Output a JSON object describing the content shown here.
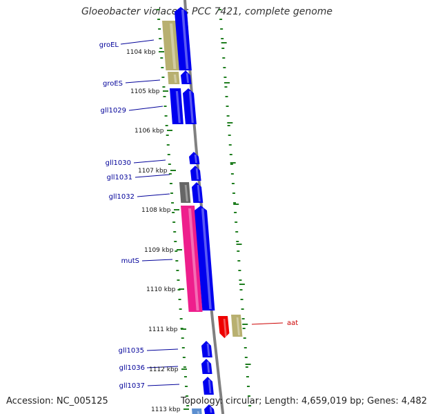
{
  "header": {
    "title": "Gloeobacter violaceus PCC 7421, complete genome"
  },
  "footer": {
    "accession": "Accession: NC_005125",
    "topology": "Topology: circular; Length: 4,659,019 bp; Genes: 4,482"
  },
  "colors": {
    "background": "#ffffff",
    "backbone": "#808080",
    "tick": "#1e7d1e",
    "gene_blue": "#0000ee",
    "gene_khaki": "#b8b070",
    "gene_pink": "#ee1e8c",
    "gene_gray": "#666666",
    "gene_red": "#ee0000",
    "gene_lightblue": "#5c8fd0",
    "label_blue": "#000099",
    "label_red": "#cc0000"
  },
  "ruler": {
    "ticks": [
      "1104 kbp",
      "1105 kbp",
      "1106 kbp",
      "1107 kbp",
      "1108 kbp",
      "1109 kbp",
      "1110 kbp",
      "1111 kbp",
      "1112 kbp",
      "1113 kbp"
    ]
  },
  "gene_labels": [
    {
      "text": "groEL"
    },
    {
      "text": "groES"
    },
    {
      "text": "gll1029"
    },
    {
      "text": "gll1030"
    },
    {
      "text": "gll1031"
    },
    {
      "text": "gll1032"
    },
    {
      "text": "mutS"
    },
    {
      "text": "aat"
    },
    {
      "text": "gll1035"
    },
    {
      "text": "gll1036"
    },
    {
      "text": "gll1037"
    }
  ]
}
